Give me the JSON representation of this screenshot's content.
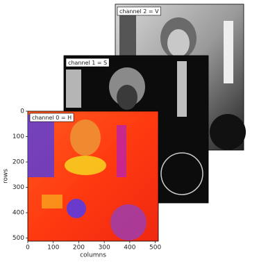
{
  "chart_data": {
    "type": "image",
    "panels": [
      {
        "label": "channel 2 = V"
      },
      {
        "label": "channel 1 = S"
      },
      {
        "label": "channel 0 = H"
      }
    ],
    "xlabel": "columns",
    "ylabel": "rows",
    "xlim": [
      0,
      512
    ],
    "ylim": [
      512,
      0
    ],
    "xticks": [
      0,
      100,
      200,
      300,
      400,
      500
    ],
    "yticks": [
      0,
      100,
      200,
      300,
      400,
      500
    ]
  }
}
